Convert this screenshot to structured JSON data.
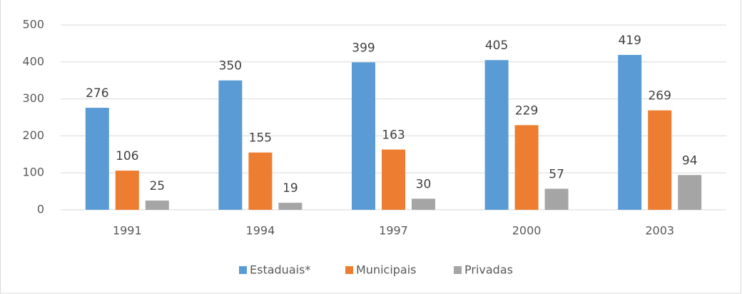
{
  "chart_data": {
    "type": "bar",
    "categories": [
      "1991",
      "1994",
      "1997",
      "2000",
      "2003"
    ],
    "series": [
      {
        "name": "Estaduais*",
        "color": "#5b9bd5",
        "values": [
          276,
          350,
          399,
          405,
          419
        ]
      },
      {
        "name": "Municipais",
        "color": "#ed7d31",
        "values": [
          106,
          155,
          163,
          229,
          269
        ]
      },
      {
        "name": "Privadas",
        "color": "#a5a5a5",
        "values": [
          25,
          19,
          30,
          57,
          94
        ]
      }
    ],
    "ylim": [
      0,
      500
    ],
    "yticks": [
      0,
      100,
      200,
      300,
      400,
      500
    ],
    "grid": true,
    "legend": "bottom"
  }
}
